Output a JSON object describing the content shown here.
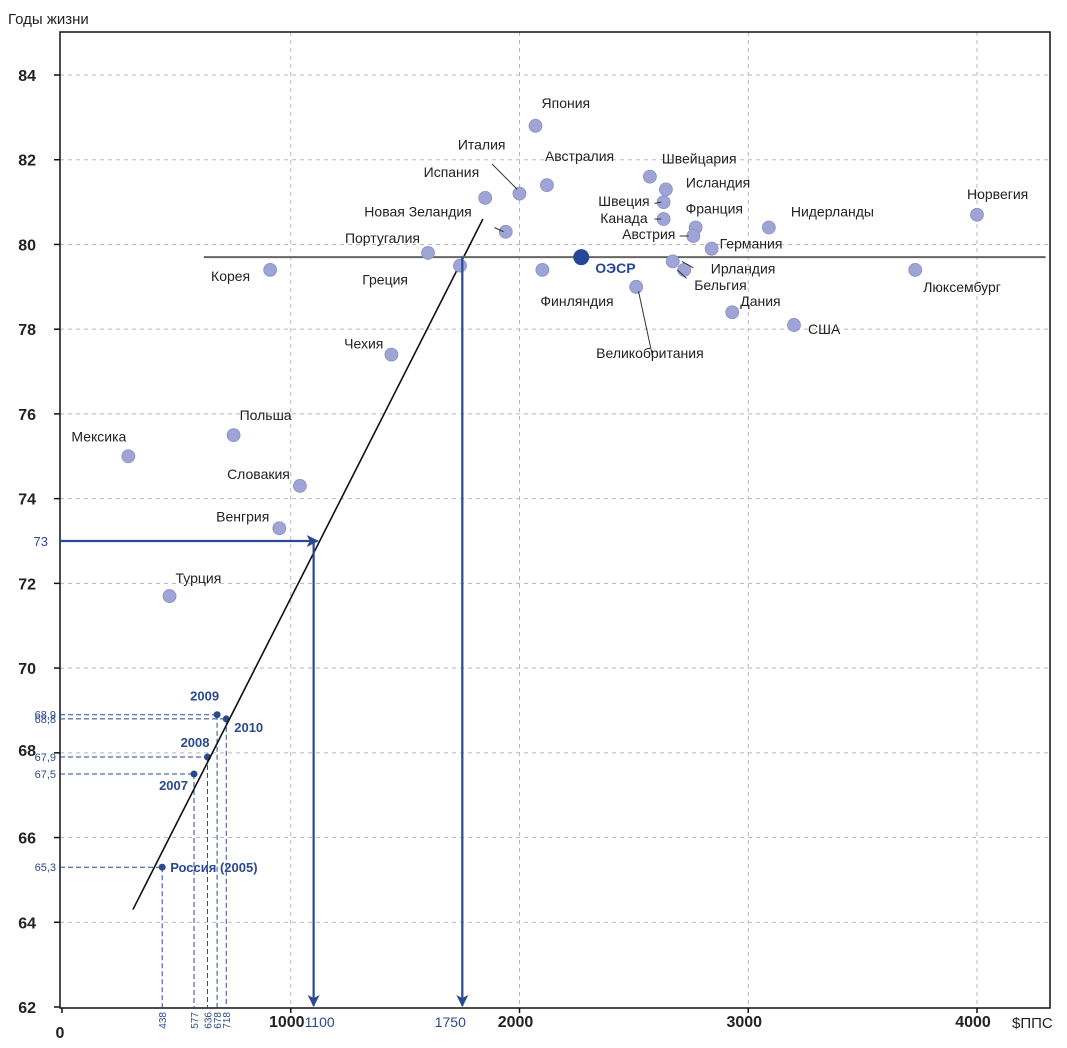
{
  "chart_data": {
    "type": "scatter",
    "ylabel": "Годы жизни",
    "xlabel": "$ППС",
    "xlim": [
      0,
      4300
    ],
    "ylim": [
      62,
      85
    ],
    "x_ticks": [
      0,
      1000,
      2000,
      3000,
      4000
    ],
    "x_tick_labels": [
      "0",
      "1000",
      "2000",
      "3000",
      "4000"
    ],
    "y_ticks": [
      62,
      64,
      66,
      68,
      70,
      72,
      74,
      76,
      78,
      80,
      82,
      84
    ],
    "y_tick_labels": [
      "62",
      "64",
      "66",
      "68",
      "70",
      "72",
      "74",
      "76",
      "78",
      "80",
      "82",
      "84"
    ],
    "grid": true,
    "countries": [
      {
        "name": "Япония",
        "x": 2070,
        "y": 82.8
      },
      {
        "name": "Италия",
        "x": 2000,
        "y": 81.2
      },
      {
        "name": "Австралия",
        "x": 2120,
        "y": 81.4
      },
      {
        "name": "Испания",
        "x": 1850,
        "y": 81.1
      },
      {
        "name": "Новая Зеландия",
        "x": 1940,
        "y": 80.3
      },
      {
        "name": "Португалия",
        "x": 1600,
        "y": 79.8
      },
      {
        "name": "Греция",
        "x": 1740,
        "y": 79.5
      },
      {
        "name": "Корея",
        "x": 910,
        "y": 79.4
      },
      {
        "name": "Финляндия",
        "x": 2100,
        "y": 79.4
      },
      {
        "name": "Швейцария",
        "x": 2570,
        "y": 81.6
      },
      {
        "name": "Исландия",
        "x": 2640,
        "y": 81.3
      },
      {
        "name": "Швеция",
        "x": 2630,
        "y": 81.0
      },
      {
        "name": "Канада",
        "x": 2630,
        "y": 80.6
      },
      {
        "name": "Франция",
        "x": 2770,
        "y": 80.4
      },
      {
        "name": "Австрия",
        "x": 2760,
        "y": 80.2
      },
      {
        "name": "Германия",
        "x": 2840,
        "y": 79.9
      },
      {
        "name": "Ирландия",
        "x": 2670,
        "y": 79.6
      },
      {
        "name": "Бельгия",
        "x": 2720,
        "y": 79.4
      },
      {
        "name": "Великобритания",
        "x": 2510,
        "y": 79.0
      },
      {
        "name": "Дания",
        "x": 2930,
        "y": 78.4
      },
      {
        "name": "США",
        "x": 3200,
        "y": 78.1
      },
      {
        "name": "Нидерланды",
        "x": 3090,
        "y": 80.4
      },
      {
        "name": "Норвегия",
        "x": 4000,
        "y": 80.7
      },
      {
        "name": "Люксембург",
        "x": 3730,
        "y": 79.4
      },
      {
        "name": "Чехия",
        "x": 1440,
        "y": 77.4
      },
      {
        "name": "Польша",
        "x": 750,
        "y": 75.5
      },
      {
        "name": "Мексика",
        "x": 290,
        "y": 75.0
      },
      {
        "name": "Словакия",
        "x": 1040,
        "y": 74.3
      },
      {
        "name": "Венгрия",
        "x": 950,
        "y": 73.3
      },
      {
        "name": "Турция",
        "x": 470,
        "y": 71.7
      }
    ],
    "oecd": {
      "name": "ОЭСР",
      "x": 2270,
      "y": 79.7
    },
    "oecd_line_y": 79.7,
    "trend_line": [
      {
        "x": 310,
        "y": 64.3
      },
      {
        "x": 1840,
        "y": 80.6
      }
    ],
    "russia_points": [
      {
        "label": "Россия (2005)",
        "x": 438,
        "y": 65.3
      },
      {
        "label": "2007",
        "x": 577,
        "y": 67.5
      },
      {
        "label": "2008",
        "x": 636,
        "y": 67.9
      },
      {
        "label": "2009",
        "x": 678,
        "y": 68.9
      },
      {
        "label": "2010",
        "x": 718,
        "y": 68.8
      }
    ],
    "russia_y_labels": [
      "68,9",
      "68,8",
      "67,9",
      "67,5",
      "65,3"
    ],
    "russia_x_labels": [
      "438",
      "577",
      "636",
      "678",
      "718"
    ],
    "arrows": {
      "y_start": "73",
      "x_targets": [
        "1100",
        "1750"
      ]
    }
  }
}
